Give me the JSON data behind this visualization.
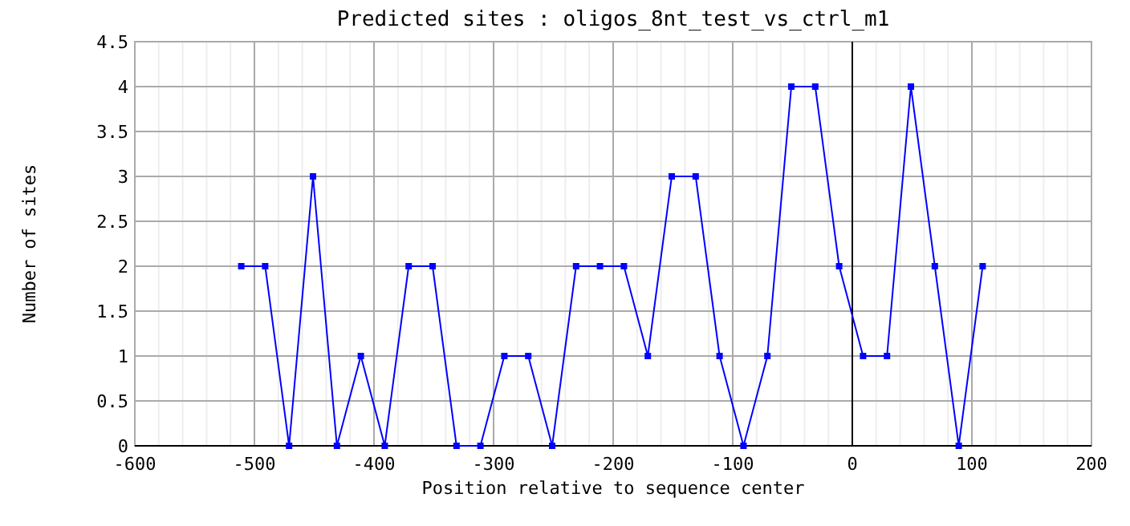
{
  "chart_data": {
    "type": "line",
    "title": "Predicted sites : oligos_8nt_test_vs_ctrl_m1",
    "xlabel": "Position relative to sequence center",
    "ylabel": "Number of sites",
    "x": [
      -511,
      -491,
      -471,
      -451,
      -431,
      -411,
      -391,
      -371,
      -351,
      -331,
      -311,
      -291,
      -271,
      -251,
      -231,
      -211,
      -191,
      -171,
      -151,
      -131,
      -111,
      -91,
      -71,
      -51,
      -31,
      -11,
      9,
      29,
      49,
      69,
      89,
      109
    ],
    "series": [
      {
        "color": "#0000ff",
        "values": [
          2,
          2,
          0,
          3,
          0,
          1,
          0,
          2,
          2,
          0,
          0,
          1,
          1,
          0,
          2,
          2,
          2,
          1,
          3,
          3,
          1,
          0,
          1,
          4,
          4,
          2,
          1,
          1,
          4,
          2,
          0,
          2
        ]
      }
    ],
    "xlim": [
      -600,
      200
    ],
    "xticks": [
      -600,
      -500,
      -400,
      -300,
      -200,
      -100,
      0,
      100,
      200
    ],
    "ylim": [
      0,
      4.5
    ],
    "yticks": [
      0,
      0.5,
      1,
      1.5,
      2,
      2.5,
      3,
      3.5,
      4,
      4.5
    ],
    "grid": true,
    "marker": "square",
    "line_style": "solid",
    "ref_lines": [
      {
        "axis": "x",
        "value": 0,
        "color": "#000000"
      }
    ]
  }
}
